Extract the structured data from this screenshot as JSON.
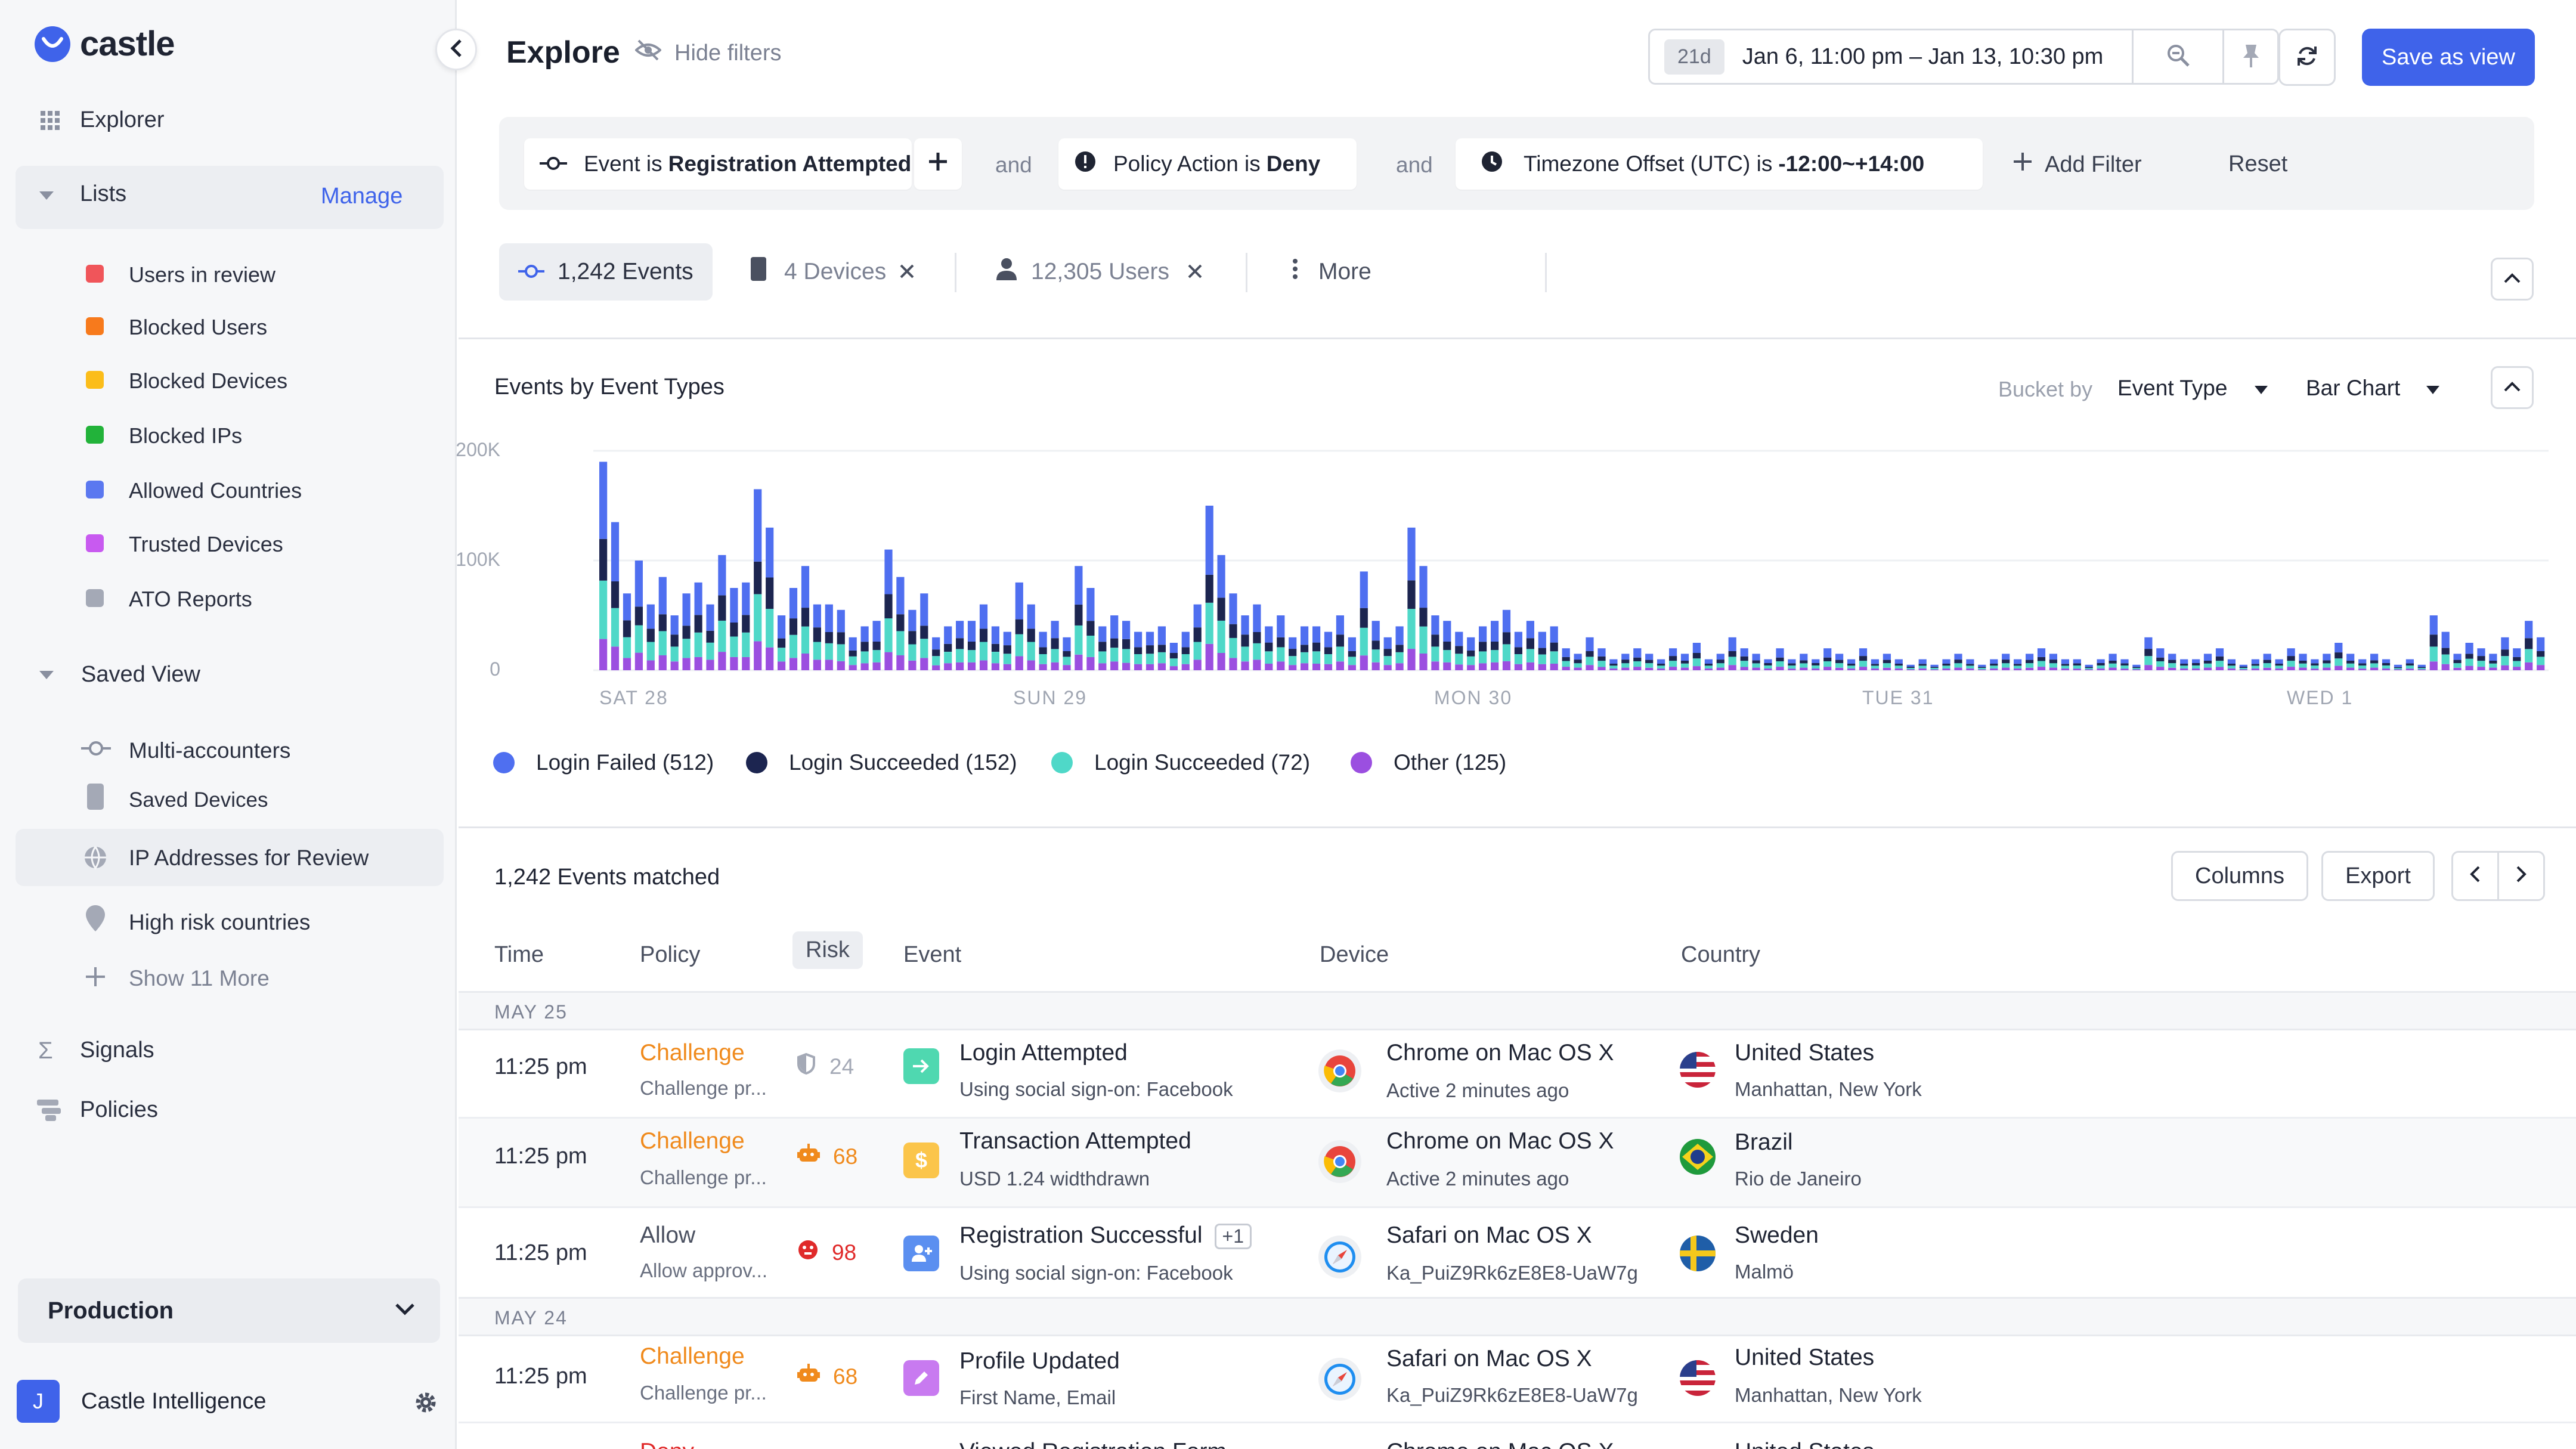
{
  "app": {
    "brand": "castle"
  },
  "sidebar": {
    "explorer": "Explorer",
    "lists": {
      "label": "Lists",
      "manage": "Manage"
    },
    "list_items": [
      {
        "label": "Users in review",
        "color": "#f0555a"
      },
      {
        "label": "Blocked Users",
        "color": "#f77a1c"
      },
      {
        "label": "Blocked Devices",
        "color": "#fbbd1a"
      },
      {
        "label": "Blocked IPs",
        "color": "#22b33a"
      },
      {
        "label": "Allowed Countries",
        "color": "#5b78f0"
      },
      {
        "label": "Trusted Devices",
        "color": "#c85af0"
      },
      {
        "label": "ATO Reports",
        "color": "#a4a9b6"
      }
    ],
    "saved_view": {
      "label": "Saved View"
    },
    "saved_items": [
      {
        "label": "Multi-accounters",
        "icon": "event-flow-icon"
      },
      {
        "label": "Saved Devices",
        "icon": "device-icon"
      },
      {
        "label": "IP Addresses for Review",
        "icon": "globe-icon"
      },
      {
        "label": "High risk countries",
        "icon": "location-pin-icon"
      }
    ],
    "show_more": "Show 11 More",
    "signals": "Signals",
    "policies": "Policies",
    "environment": "Production",
    "org": {
      "initial": "J",
      "name": "Castle Intelligence"
    }
  },
  "header": {
    "title": "Explore",
    "hide_filters": "Hide filters",
    "range_badge": "21d",
    "date_range": "Jan 6, 11:00 pm – Jan 13, 10:30 pm",
    "save_view": "Save as view"
  },
  "filters": {
    "chips": [
      {
        "prefix": "Event is",
        "value": "Registration Attempted"
      },
      {
        "prefix": "Policy Action is",
        "value": "Deny"
      },
      {
        "prefix": "Timezone Offset (UTC) is",
        "value": "-12:00~+14:00"
      }
    ],
    "joiner": "and",
    "add_filter": "Add Filter",
    "reset": "Reset"
  },
  "tabs": [
    {
      "label": "1,242 Events"
    },
    {
      "label": "4 Devices"
    },
    {
      "label": "12,305 Users"
    },
    {
      "label": "More"
    }
  ],
  "chart_panel": {
    "title": "Events by Event Types",
    "bucket_label": "Bucket by",
    "bucket_value": "Event Type",
    "chart_type": "Bar Chart"
  },
  "chart_data": {
    "type": "bar",
    "stacked": true,
    "yticks": [
      "200K",
      "100K",
      "0"
    ],
    "ylim": [
      0,
      200000
    ],
    "xticks": [
      "SAT 28",
      "SUN 29",
      "MON 30",
      "TUE 31",
      "WED 1"
    ],
    "legend": [
      {
        "label": "Login Failed (512)",
        "color": "#4f6ff0"
      },
      {
        "label": "Login Succeeded (152)",
        "color": "#1c2550"
      },
      {
        "label": "Login Succeeded (72)",
        "color": "#4fd8c8"
      },
      {
        "label": "Other (125)",
        "color": "#9b4fe0"
      }
    ],
    "totals": [
      190000,
      135000,
      70000,
      100000,
      60000,
      85000,
      50000,
      70000,
      80000,
      60000,
      105000,
      75000,
      80000,
      165000,
      130000,
      50000,
      75000,
      95000,
      60000,
      60000,
      55000,
      30000,
      40000,
      45000,
      110000,
      85000,
      55000,
      70000,
      30000,
      40000,
      45000,
      45000,
      60000,
      40000,
      35000,
      80000,
      60000,
      35000,
      45000,
      30000,
      95000,
      75000,
      40000,
      50000,
      45000,
      35000,
      35000,
      40000,
      25000,
      35000,
      60000,
      150000,
      105000,
      70000,
      50000,
      60000,
      40000,
      50000,
      30000,
      40000,
      40000,
      35000,
      50000,
      30000,
      90000,
      45000,
      30000,
      40000,
      130000,
      95000,
      50000,
      45000,
      35000,
      30000,
      40000,
      45000,
      55000,
      35000,
      45000,
      35000,
      40000,
      20000,
      15000,
      30000,
      20000,
      10000,
      15000,
      20000,
      15000,
      10000,
      20000,
      15000,
      25000,
      10000,
      15000,
      30000,
      20000,
      15000,
      10000,
      20000,
      10000,
      15000,
      10000,
      20000,
      15000,
      10000,
      20000,
      10000,
      15000,
      10000,
      5000,
      10000,
      5000,
      10000,
      15000,
      10000,
      5000,
      10000,
      15000,
      10000,
      15000,
      20000,
      15000,
      10000,
      10000,
      5000,
      10000,
      15000,
      10000,
      5000,
      30000,
      20000,
      15000,
      10000,
      10000,
      15000,
      20000,
      10000,
      5000,
      10000,
      15000,
      10000,
      20000,
      15000,
      10000,
      15000,
      25000,
      15000,
      10000,
      15000,
      10000,
      5000,
      10000,
      5000,
      50000,
      35000,
      15000,
      25000,
      20000,
      15000,
      30000,
      20000,
      45000,
      30000
    ]
  },
  "events": {
    "matched": "1,242 Events matched",
    "columns_btn": "Columns",
    "export_btn": "Export",
    "headers": {
      "time": "Time",
      "policy": "Policy",
      "risk": "Risk",
      "event": "Event",
      "device": "Device",
      "country": "Country"
    },
    "groups": [
      {
        "date": "MAY 25"
      },
      {
        "date": "MAY 24"
      }
    ],
    "rows": [
      {
        "time": "11:25 pm",
        "policy": "Challenge",
        "policy_sub": "Challenge pr...",
        "risk": "24",
        "event": "Login Attempted",
        "event_sub": "Using social sign-on: Facebook",
        "device": "Chrome on Mac OS X",
        "device_sub": "Active 2 minutes ago",
        "country": "United States",
        "country_sub": "Manhattan, New York"
      },
      {
        "time": "11:25 pm",
        "policy": "Challenge",
        "policy_sub": "Challenge pr...",
        "risk": "68",
        "event": "Transaction Attempted",
        "event_sub": "USD 1.24 widthdrawn",
        "device": "Chrome on Mac OS X",
        "device_sub": "Active 2 minutes ago",
        "country": "Brazil",
        "country_sub": "Rio de Janeiro"
      },
      {
        "time": "11:25 pm",
        "policy": "Allow",
        "policy_sub": "Allow approv...",
        "risk": "98",
        "event": "Registration Successful",
        "event_badge": "+1",
        "event_sub": "Using social sign-on: Facebook",
        "device": "Safari on Mac OS X",
        "device_sub": "Ka_PuiZ9Rk6zE8E8-UaW7g",
        "country": "Sweden",
        "country_sub": "Malmö"
      },
      {
        "time": "11:25 pm",
        "policy": "Challenge",
        "policy_sub": "Challenge pr...",
        "risk": "68",
        "event": "Profile Updated",
        "event_sub": "First Name, Email",
        "device": "Safari on Mac OS X",
        "device_sub": "Ka_PuiZ9Rk6zE8E8-UaW7g",
        "country": "United States",
        "country_sub": "Manhattan, New York"
      },
      {
        "policy": "Deny",
        "event": "Viewed Registration Form",
        "device": "Chrome on Mac OS X",
        "country": "United States"
      }
    ]
  }
}
